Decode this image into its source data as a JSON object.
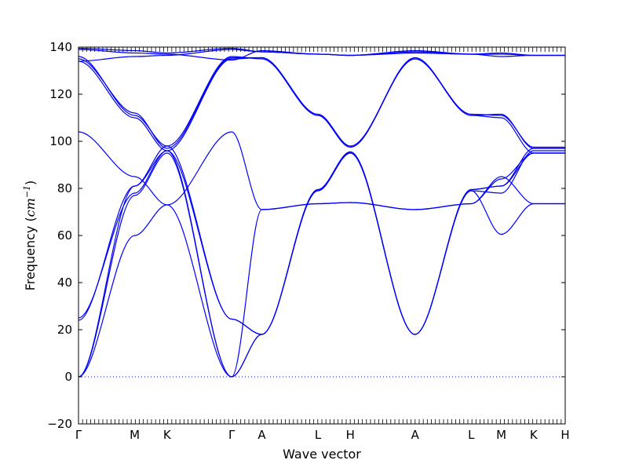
{
  "chart_data": {
    "type": "line",
    "title": "",
    "xlabel": "Wave vector",
    "ylabel_prefix": "Frequency (",
    "ylabel_math_base": "cm",
    "ylabel_math_exp": "−1",
    "ylabel_suffix": ")",
    "ylim": [
      -20,
      140
    ],
    "yticks": [
      -20,
      0,
      20,
      40,
      60,
      80,
      100,
      120,
      140
    ],
    "grid": false,
    "legend": "none",
    "line_color": "#0000ff",
    "zero_line_color": "#0000ff",
    "path_length": 6.32,
    "kpoints": [
      {
        "label": "Γ",
        "x": 0.0
      },
      {
        "label": "M",
        "x": 0.73
      },
      {
        "label": "K",
        "x": 1.15
      },
      {
        "label": "Γ",
        "x": 1.99
      },
      {
        "label": "A",
        "x": 2.38
      },
      {
        "label": "L",
        "x": 3.11
      },
      {
        "label": "H",
        "x": 3.53
      },
      {
        "label": "A",
        "x": 4.37
      },
      {
        "label": "L",
        "x": 5.1
      },
      {
        "label": "M",
        "x": 5.49
      },
      {
        "label": "K",
        "x": 5.91
      },
      {
        "label": "H",
        "x": 6.32
      }
    ],
    "bands": [
      {
        "x": [
          0,
          0.73,
          1.15,
          1.99,
          2.38,
          3.11,
          3.53,
          4.37,
          5.1,
          5.49,
          5.91,
          6.32
        ],
        "y": [
          0,
          77,
          95,
          0,
          18,
          79,
          95,
          18,
          79,
          78,
          96,
          96
        ]
      },
      {
        "x": [
          0,
          0.73,
          1.15,
          1.99,
          2.38,
          3.11,
          3.53,
          4.37,
          5.1,
          5.49,
          5.91,
          6.32
        ],
        "y": [
          0,
          81,
          96,
          0,
          18,
          79.5,
          95.5,
          18,
          79.5,
          81,
          97,
          97
        ]
      },
      {
        "x": [
          0,
          0.73,
          1.15,
          1.99,
          2.38,
          3.11,
          3.53,
          4.37,
          5.1,
          5.49,
          5.91,
          6.32
        ],
        "y": [
          0,
          60,
          73,
          0,
          71,
          73.5,
          74,
          71,
          73.5,
          85,
          73.5,
          73.5
        ]
      },
      {
        "x": [
          0,
          0.73,
          1.15,
          1.99,
          2.38,
          3.11,
          3.53,
          4.37,
          5.1,
          5.49,
          5.91,
          6.32
        ],
        "y": [
          24,
          81,
          98,
          24.5,
          18,
          79,
          95,
          18,
          79,
          60.5,
          73.5,
          73.5
        ]
      },
      {
        "x": [
          0,
          0.73,
          1.15,
          1.99,
          2.38,
          3.11,
          3.53,
          4.37,
          5.1,
          5.49,
          5.91,
          6.32
        ],
        "y": [
          25,
          78,
          96,
          24.5,
          18,
          79.5,
          95.5,
          18,
          79.5,
          81,
          95,
          95
        ]
      },
      {
        "x": [
          0,
          0.73,
          1.15,
          1.99,
          2.38,
          3.11,
          3.53,
          4.37,
          5.1,
          5.49,
          5.91,
          6.32
        ],
        "y": [
          104,
          85,
          73,
          104,
          71,
          73.5,
          74,
          71,
          73.5,
          84,
          95,
          95
        ]
      },
      {
        "x": [
          0,
          0.73,
          1.15,
          1.99,
          2.38,
          3.11,
          3.53,
          4.37,
          5.1,
          5.49,
          5.91,
          6.32
        ],
        "y": [
          134,
          110,
          96,
          135,
          135.5,
          111,
          97.5,
          135.5,
          111,
          110,
          95,
          95
        ]
      },
      {
        "x": [
          0,
          0.73,
          1.15,
          1.99,
          2.38,
          3.11,
          3.53,
          4.37,
          5.1,
          5.49,
          5.91,
          6.32
        ],
        "y": [
          135,
          112,
          97,
          135.5,
          135.5,
          111.5,
          98,
          135,
          111,
          111.5,
          97,
          97
        ]
      },
      {
        "x": [
          0,
          0.73,
          1.15,
          1.99,
          2.38,
          3.11,
          3.53,
          4.37,
          5.1,
          5.49,
          5.91,
          6.32
        ],
        "y": [
          136,
          111,
          98,
          136,
          135,
          111,
          97.5,
          135,
          111.5,
          111,
          97.5,
          97.5
        ]
      },
      {
        "x": [
          0,
          0.73,
          1.15,
          1.99,
          2.38,
          3.11,
          3.53,
          4.37,
          5.1,
          5.49,
          5.91,
          6.32
        ],
        "y": [
          134,
          136,
          136.5,
          139,
          138,
          137,
          136.5,
          138,
          137,
          136,
          136.5,
          136.5
        ]
      },
      {
        "x": [
          0,
          0.73,
          1.15,
          1.99,
          2.38,
          3.11,
          3.53,
          4.37,
          5.1,
          5.49,
          5.91,
          6.32
        ],
        "y": [
          139,
          137.5,
          137,
          134.5,
          138.5,
          137,
          136.5,
          138.5,
          137,
          137.5,
          136.5,
          136.5
        ]
      },
      {
        "x": [
          0,
          0.73,
          1.15,
          1.99,
          2.38,
          3.11,
          3.53,
          4.37,
          5.1,
          5.49,
          5.91,
          6.32
        ],
        "y": [
          139.5,
          138.5,
          137.5,
          139.5,
          138,
          137,
          136.5,
          137.5,
          137,
          137,
          136.5,
          136.5
        ]
      }
    ]
  }
}
